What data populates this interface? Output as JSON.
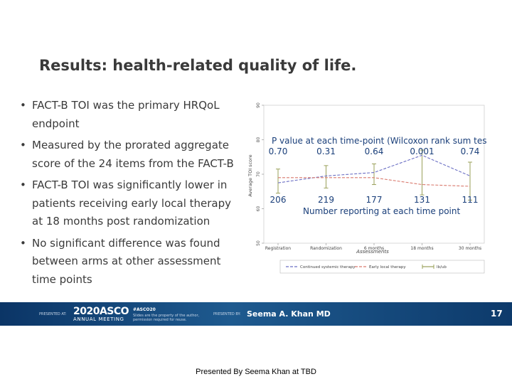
{
  "slide": {
    "title": "Results: health-related quality of life.",
    "bullets": [
      "FACT-B TOI was the primary HRQoL endpoint",
      "Measured by the prorated aggregate score of the 24 items from the FACT-B",
      "FACT-B TOI was significantly lower in patients receiving early local therapy at 18 months post randomization",
      "No significant difference was found between arms at other assessment time points"
    ],
    "bullet_glyph": "•"
  },
  "chart_data": {
    "type": "line",
    "categories": [
      "Registration",
      "Randomization",
      "6 months",
      "18 months",
      "30 months"
    ],
    "xlabel": "Assessments",
    "ylabel": "Average TOI score",
    "ylim": [
      50,
      90
    ],
    "yticks": [
      50,
      60,
      70,
      80,
      90
    ],
    "series": [
      {
        "name": "Continued systemic therapy",
        "color": "#6b6fc4",
        "dash": "dashed",
        "values": [
          67.5,
          69.5,
          70.5,
          75.5,
          69.5
        ]
      },
      {
        "name": "Early local therapy",
        "color": "#d97a6e",
        "dash": "dashed",
        "values": [
          69.0,
          69.0,
          69.0,
          67.0,
          66.5
        ]
      },
      {
        "name": "lb/ub",
        "color": "#9aa05a",
        "dash": "solid",
        "errorbars": true,
        "low": [
          64.5,
          66.0,
          67.0,
          64.0,
          62.5
        ],
        "high": [
          71.5,
          72.5,
          73.0,
          77.0,
          73.5
        ]
      }
    ],
    "annotations": {
      "pvalue_header": "P value at each time-point (Wilcoxon rank sum test)",
      "pvalues": [
        "0.70",
        "0.31",
        "0.64",
        "0.001",
        "0.74"
      ],
      "counts": [
        "206",
        "219",
        "177",
        "131",
        "111"
      ],
      "counts_label": "Number reporting at each time point"
    },
    "legend_position": "bottom",
    "grid": false
  },
  "banner": {
    "presented_at": "PRESENTED AT:",
    "asco_year": "2020ASCO",
    "asco_meeting": "ANNUAL MEETING",
    "hashtag": "#ASCO20",
    "hashtag_sub1": "Slides are the property of the author,",
    "hashtag_sub2": "permission required for reuse.",
    "presented_by": "PRESENTED BY:",
    "presenter": "Seema A. Khan MD",
    "slide_number": "17",
    "colors": {
      "primary": "#0b3566",
      "accent": "#1e5a8f"
    }
  },
  "footer": {
    "text": "Presented By Seema Khan at TBD"
  }
}
